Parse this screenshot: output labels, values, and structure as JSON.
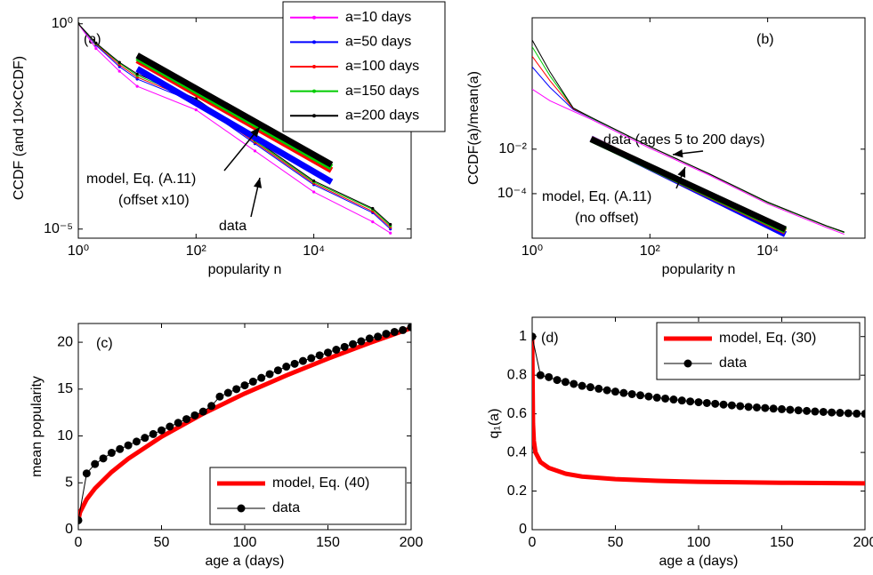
{
  "chart_data": [
    {
      "type": "line",
      "log_x": true,
      "log_y": true,
      "x_label": "popularity n",
      "y_label": "CCDF (and 10×CCDF)",
      "annotations": [
        "(a)",
        "model, Eq. (A.11)",
        "(offset x10)",
        "data"
      ],
      "xlim": [
        1,
        450000
      ],
      "ylim": [
        6e-06,
        1.4
      ],
      "xticks": [
        {
          "value": 1,
          "label": "10⁰"
        },
        {
          "value": 100,
          "label": "10²"
        },
        {
          "value": 10000,
          "label": "10⁴"
        }
      ],
      "yticks": [
        {
          "value": 1e-05,
          "label": "10⁻⁵"
        },
        {
          "value": 1,
          "label": "10⁰"
        }
      ],
      "legend": "upper right",
      "x": [
        1,
        2,
        5,
        10,
        100,
        1000,
        10000,
        100000,
        200000
      ],
      "series": [
        {
          "name": "a=10 days",
          "color": "#ff00ff",
          "marker": ".",
          "values": [
            1,
            0.25,
            0.07,
            0.03,
            0.008,
            0.0008,
            8e-05,
            1.5e-05,
            8e-06
          ]
        },
        {
          "name": "a=50 days",
          "color": "#0000ff",
          "marker": ".",
          "values": [
            1,
            0.3,
            0.09,
            0.045,
            0.012,
            0.0012,
            0.00012,
            2.5e-05,
            1e-05
          ]
        },
        {
          "name": "a=100 days",
          "color": "#ff0000",
          "marker": ".",
          "values": [
            1,
            0.32,
            0.1,
            0.05,
            0.013,
            0.0013,
            0.00013,
            2.7e-05,
            1.1e-05
          ]
        },
        {
          "name": "a=150 days",
          "color": "#00cc00",
          "marker": ".",
          "values": [
            1,
            0.33,
            0.11,
            0.055,
            0.014,
            0.0014,
            0.00014,
            3e-05,
            1.2e-05
          ]
        },
        {
          "name": "a=200 days",
          "color": "#000000",
          "marker": ".",
          "values": [
            1,
            0.34,
            0.115,
            0.06,
            0.015,
            0.0015,
            0.00015,
            3.2e-05,
            1.3e-05
          ]
        }
      ],
      "model_lines": [
        {
          "color": "#0000ff",
          "x": [
            10,
            20000
          ],
          "values": [
            0.08,
            0.00014
          ]
        },
        {
          "color": "#ff0000",
          "x": [
            10,
            20000
          ],
          "values": [
            0.13,
            0.00027
          ]
        },
        {
          "color": "#00cc00",
          "x": [
            10,
            20000
          ],
          "values": [
            0.15,
            0.00032
          ]
        },
        {
          "color": "#000000",
          "x": [
            10,
            20000
          ],
          "values": [
            0.17,
            0.00037
          ]
        }
      ]
    },
    {
      "type": "line",
      "log_x": true,
      "log_y": true,
      "x_label": "popularity n",
      "y_label": "CCDF(a)/mean(a)",
      "annotations": [
        "(b)",
        "data (ages 5 to 200 days)",
        "model, Eq. (A.11)",
        "(no offset)"
      ],
      "xlim": [
        1,
        450000
      ],
      "ylim": [
        1e-06,
        8000
      ],
      "xticks": [
        {
          "value": 1,
          "label": "10⁰"
        },
        {
          "value": 100,
          "label": "10²"
        },
        {
          "value": 10000,
          "label": "10⁴"
        }
      ],
      "yticks": [
        {
          "value": 0.0001,
          "label": "10⁻⁴"
        },
        {
          "value": 0.01,
          "label": "10⁻²"
        }
      ],
      "x": [
        1,
        2,
        5,
        10,
        100,
        1000,
        10000,
        100000,
        200000
      ],
      "series": [
        {
          "color": "#ff00ff",
          "values": [
            5,
            1.5,
            0.5,
            0.22,
            0.011,
            0.0007,
            3.5e-05,
            3e-06,
            1.5e-06
          ]
        },
        {
          "color": "#0000ff",
          "values": [
            50,
            6,
            0.6,
            0.25,
            0.013,
            0.0008,
            4e-05,
            3.5e-06,
            1.8e-06
          ]
        },
        {
          "color": "#ff0000",
          "values": [
            150,
            12,
            0.65,
            0.26,
            0.013,
            0.0008,
            4e-05,
            3.5e-06,
            1.8e-06
          ]
        },
        {
          "color": "#00cc00",
          "values": [
            400,
            20,
            0.7,
            0.26,
            0.013,
            0.0008,
            4e-05,
            3.5e-06,
            1.8e-06
          ]
        },
        {
          "color": "#000000",
          "values": [
            800,
            30,
            0.7,
            0.27,
            0.013,
            0.0008,
            4.2e-05,
            3.6e-06,
            1.9e-06
          ]
        }
      ],
      "model_lines": [
        {
          "color": "#0000ff",
          "x": [
            10,
            20000
          ],
          "values": [
            0.03,
            1.5e-06
          ]
        },
        {
          "color": "#ff0000",
          "x": [
            10,
            20000
          ],
          "values": [
            0.029,
            2e-06
          ]
        },
        {
          "color": "#00cc00",
          "x": [
            10,
            20000
          ],
          "values": [
            0.028,
            2.2e-06
          ]
        },
        {
          "color": "#000000",
          "x": [
            10,
            20000
          ],
          "values": [
            0.028,
            2.5e-06
          ]
        }
      ]
    },
    {
      "type": "line",
      "x_label": "age a (days)",
      "y_label": "mean popularity",
      "annotations": [
        "(c)"
      ],
      "xlim": [
        0,
        200
      ],
      "ylim": [
        0,
        22
      ],
      "xticks": [
        0,
        50,
        100,
        150,
        200
      ],
      "yticks": [
        0,
        5,
        10,
        15,
        20
      ],
      "legend": "lower right",
      "series": [
        {
          "name": "model, Eq. (40)",
          "color": "#ff0000",
          "width": 5,
          "x": [
            0,
            1,
            5,
            10,
            20,
            30,
            50,
            75,
            100,
            125,
            150,
            175,
            200
          ],
          "values": [
            1,
            1.85,
            3.24,
            4.4,
            6.15,
            7.57,
            9.92,
            12.38,
            14.53,
            16.46,
            18.25,
            19.92,
            21.5
          ]
        },
        {
          "name": "data",
          "color": "#000000",
          "width": 1,
          "marker": "o",
          "x": [
            0,
            5,
            10,
            15,
            20,
            25,
            30,
            35,
            40,
            45,
            50,
            55,
            60,
            65,
            70,
            75,
            80,
            85,
            90,
            95,
            100,
            105,
            110,
            115,
            120,
            125,
            130,
            135,
            140,
            145,
            150,
            155,
            160,
            165,
            170,
            175,
            180,
            185,
            190,
            195,
            200
          ],
          "values": [
            1,
            6,
            7,
            7.6,
            8.2,
            8.6,
            9,
            9.4,
            9.8,
            10.2,
            10.6,
            11,
            11.4,
            11.8,
            12.2,
            12.6,
            13.2,
            14.2,
            14.6,
            15,
            15.4,
            15.8,
            16.2,
            16.6,
            17,
            17.4,
            17.7,
            18,
            18.3,
            18.6,
            18.9,
            19.2,
            19.5,
            19.8,
            20.1,
            20.4,
            20.6,
            20.9,
            21.1,
            21.3,
            21.6
          ]
        }
      ]
    },
    {
      "type": "line",
      "x_label": "age a (days)",
      "y_label": "q₁(a)",
      "annotations": [
        "(d)"
      ],
      "xlim": [
        0,
        200
      ],
      "ylim": [
        0,
        1.1
      ],
      "xticks": [
        0,
        50,
        100,
        150,
        200
      ],
      "yticks": [
        0,
        0.2,
        0.4,
        0.6,
        0.8,
        1
      ],
      "legend": "upper right",
      "series": [
        {
          "name": "model, Eq. (30)",
          "color": "#ff0000",
          "width": 5,
          "x": [
            0,
            0.5,
            1,
            2,
            5,
            10,
            20,
            30,
            50,
            75,
            100,
            150,
            200
          ],
          "values": [
            1,
            0.55,
            0.46,
            0.4,
            0.35,
            0.32,
            0.29,
            0.275,
            0.262,
            0.253,
            0.248,
            0.243,
            0.24
          ]
        },
        {
          "name": "data",
          "color": "#000000",
          "width": 1,
          "marker": "o",
          "x": [
            0,
            5,
            10,
            15,
            20,
            25,
            30,
            35,
            40,
            45,
            50,
            55,
            60,
            65,
            70,
            75,
            80,
            85,
            90,
            95,
            100,
            105,
            110,
            115,
            120,
            125,
            130,
            135,
            140,
            145,
            150,
            155,
            160,
            165,
            170,
            175,
            180,
            185,
            190,
            195,
            200
          ],
          "values": [
            1,
            0.8,
            0.79,
            0.775,
            0.765,
            0.755,
            0.745,
            0.738,
            0.73,
            0.722,
            0.715,
            0.708,
            0.702,
            0.696,
            0.69,
            0.684,
            0.679,
            0.674,
            0.669,
            0.664,
            0.66,
            0.656,
            0.652,
            0.648,
            0.644,
            0.64,
            0.636,
            0.633,
            0.63,
            0.627,
            0.624,
            0.621,
            0.618,
            0.615,
            0.612,
            0.61,
            0.607,
            0.605,
            0.603,
            0.601,
            0.6
          ]
        }
      ]
    }
  ]
}
